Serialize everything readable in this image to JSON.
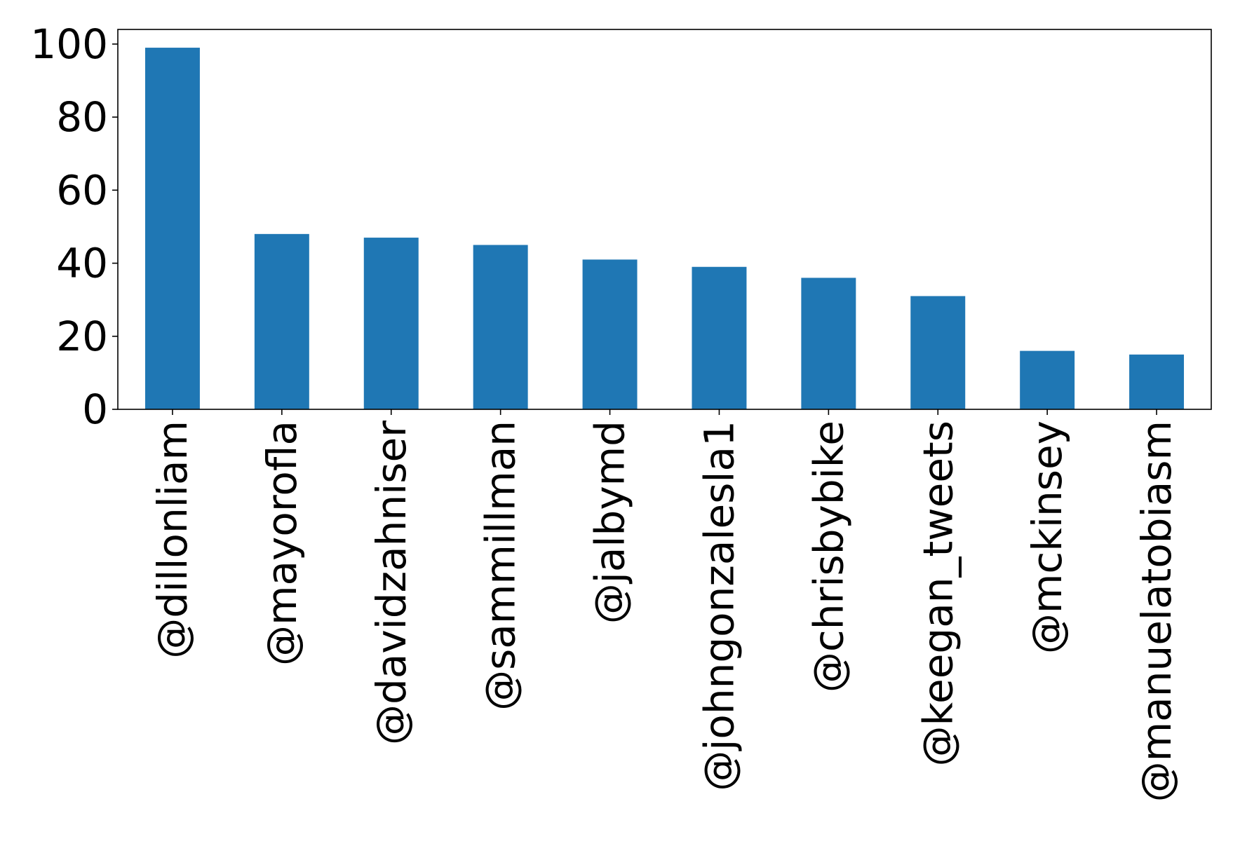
{
  "chart_data": {
    "type": "bar",
    "title": "",
    "xlabel": "",
    "ylabel": "",
    "categories": [
      "@dillonliam",
      "@mayorofla",
      "@davidzahniser",
      "@sammillman",
      "@jalbymd",
      "@johngonzalesla1",
      "@chrisbybike",
      "@keegan_tweets",
      "@mckinsey",
      "@manuelatobiasm"
    ],
    "values": [
      99,
      48,
      47,
      45,
      41,
      39,
      36,
      31,
      16,
      15
    ],
    "ylim": [
      0,
      104
    ],
    "yticks": [
      "0",
      "20",
      "40",
      "60",
      "80",
      "100"
    ],
    "bar_color": "#1f77b4",
    "grid": false,
    "legend": "none"
  }
}
